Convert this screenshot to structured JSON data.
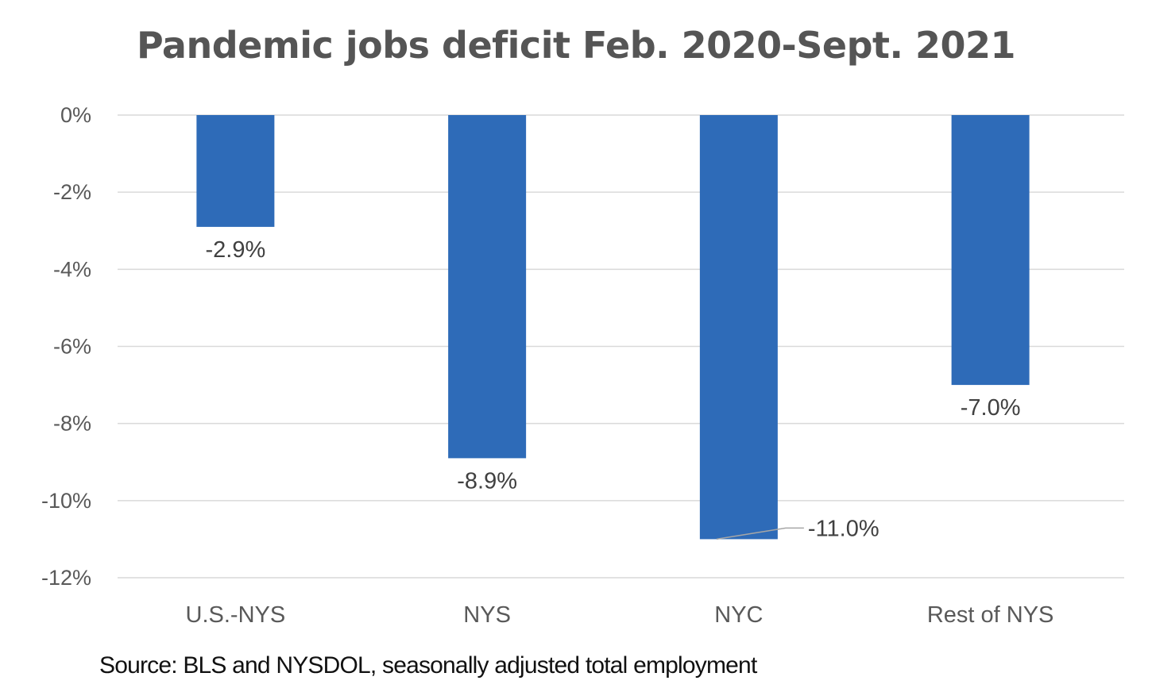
{
  "chart_data": {
    "type": "bar",
    "title": "Pandemic jobs deficit Feb. 2020-Sept. 2021",
    "categories": [
      "U.S.-NYS",
      "NYS",
      "NYC",
      "Rest of NYS"
    ],
    "values": [
      -2.9,
      -8.9,
      -11.0,
      -7.0
    ],
    "data_labels": [
      "-2.9%",
      "-8.9%",
      "-11.0%",
      "-7.0%"
    ],
    "y_ticks": [
      0,
      -2,
      -4,
      -6,
      -8,
      -10,
      -12
    ],
    "y_tick_labels": [
      "0%",
      "-2%",
      "-4%",
      "-6%",
      "-8%",
      "-10%",
      "-12%"
    ],
    "ylim": [
      -12,
      0
    ],
    "grid": true,
    "legend": "none",
    "bar_color": "#2e6bb8",
    "grid_color": "#d9d9d9",
    "source": "Source: BLS and NYSDOL, seasonally adjusted total employment"
  }
}
